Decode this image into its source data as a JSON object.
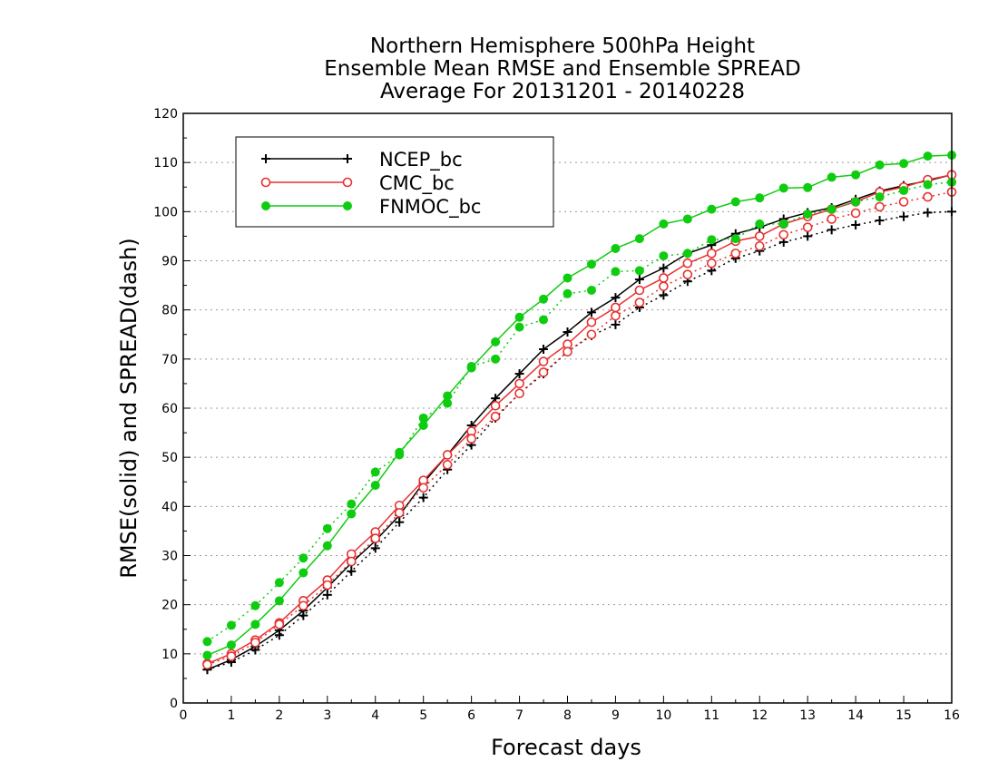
{
  "chart_data": {
    "type": "line",
    "title": [
      "Northern Hemisphere 500hPa Height",
      "Ensemble Mean RMSE and Ensemble SPREAD",
      "Average For 20131201 - 20140228"
    ],
    "xlabel": "Forecast days",
    "ylabel": "RMSE(solid) and SPREAD(dash)",
    "xlim": [
      0,
      16
    ],
    "ylim": [
      0,
      120
    ],
    "xticks": [
      0,
      1,
      2,
      3,
      4,
      5,
      6,
      7,
      8,
      9,
      10,
      11,
      12,
      13,
      14,
      15,
      16
    ],
    "yticks": [
      0,
      10,
      20,
      30,
      40,
      50,
      60,
      70,
      80,
      90,
      100,
      110,
      120
    ],
    "grid": "horizontal dotted",
    "legend_position": "top-left",
    "x": [
      0.5,
      1,
      1.5,
      2,
      2.5,
      3,
      3.5,
      4,
      4.5,
      5,
      5.5,
      6,
      6.5,
      7,
      7.5,
      8,
      8.5,
      9,
      9.5,
      10,
      10.5,
      11,
      11.5,
      12,
      12.5,
      13,
      13.5,
      14,
      14.5,
      15,
      15.5,
      16
    ],
    "series": [
      {
        "name": "NCEP_bc",
        "color": "#000000",
        "marker": "plus",
        "style": "solid",
        "values": [
          6.8,
          8.8,
          11.5,
          14.8,
          18.8,
          23.5,
          28.5,
          33.0,
          38.2,
          44.8,
          50.5,
          56.5,
          62.0,
          67.0,
          72.0,
          75.5,
          79.5,
          82.5,
          86.2,
          88.5,
          91.5,
          93.2,
          95.5,
          96.8,
          98.5,
          99.8,
          100.8,
          102.5,
          104.2,
          105.3,
          106.3,
          107.5
        ]
      },
      {
        "name": "NCEP_bc",
        "color": "#000000",
        "marker": "plus",
        "style": "dash",
        "values": [
          6.8,
          8.3,
          10.8,
          13.8,
          17.8,
          22.0,
          26.8,
          31.5,
          36.8,
          41.8,
          47.5,
          52.5,
          58.0,
          63.0,
          67.0,
          71.5,
          74.8,
          77.0,
          80.5,
          83.0,
          85.8,
          88.0,
          90.5,
          92.0,
          93.8,
          95.0,
          96.3,
          97.3,
          98.2,
          99.0,
          99.8,
          100.0
        ]
      },
      {
        "name": "CMC_bc",
        "color": "#e83030",
        "marker": "circle",
        "style": "solid",
        "values": [
          8.0,
          10.0,
          12.8,
          16.3,
          20.8,
          25.0,
          30.3,
          34.8,
          40.2,
          45.3,
          50.5,
          55.3,
          60.5,
          65.0,
          69.5,
          73.0,
          77.5,
          80.5,
          84.0,
          86.5,
          89.5,
          91.5,
          94.0,
          95.0,
          97.5,
          99.0,
          100.5,
          102.0,
          104.0,
          105.0,
          106.5,
          107.5
        ]
      },
      {
        "name": "CMC_bc",
        "color": "#e83030",
        "marker": "circle",
        "style": "dash",
        "values": [
          7.8,
          9.5,
          12.3,
          16.0,
          19.8,
          24.0,
          28.8,
          33.5,
          38.7,
          43.8,
          48.5,
          53.8,
          58.3,
          63.0,
          67.3,
          71.5,
          75.0,
          78.8,
          81.5,
          84.8,
          87.2,
          89.5,
          91.5,
          93.0,
          95.3,
          96.8,
          98.5,
          99.7,
          101.0,
          102.0,
          103.0,
          104.0
        ]
      },
      {
        "name": "FNMOC_bc",
        "color": "#10cc10",
        "marker": "dot",
        "style": "solid",
        "values": [
          9.7,
          11.8,
          16.0,
          20.8,
          26.5,
          32.0,
          38.5,
          44.3,
          51.0,
          56.5,
          62.5,
          68.2,
          73.5,
          78.5,
          82.2,
          86.5,
          89.3,
          92.5,
          94.5,
          97.5,
          98.5,
          100.5,
          102.0,
          102.8,
          104.8,
          104.9,
          107.0,
          107.5,
          109.5,
          109.8,
          111.3,
          111.5
        ]
      },
      {
        "name": "FNMOC_bc",
        "color": "#10cc10",
        "marker": "dot",
        "style": "dash",
        "values": [
          12.5,
          15.8,
          19.8,
          24.5,
          29.5,
          35.5,
          40.5,
          47.0,
          50.5,
          58.0,
          61.0,
          68.5,
          70.0,
          76.5,
          78.0,
          83.3,
          84.0,
          87.8,
          88.0,
          91.0,
          91.5,
          94.3,
          94.5,
          97.5,
          97.5,
          99.5,
          100.5,
          102.0,
          103.0,
          104.3,
          105.5,
          106.0
        ]
      }
    ],
    "legend": [
      {
        "label": "NCEP_bc",
        "color": "#000000",
        "marker": "plus"
      },
      {
        "label": "CMC_bc",
        "color": "#e83030",
        "marker": "circle"
      },
      {
        "label": "FNMOC_bc",
        "color": "#10cc10",
        "marker": "dot"
      }
    ]
  }
}
